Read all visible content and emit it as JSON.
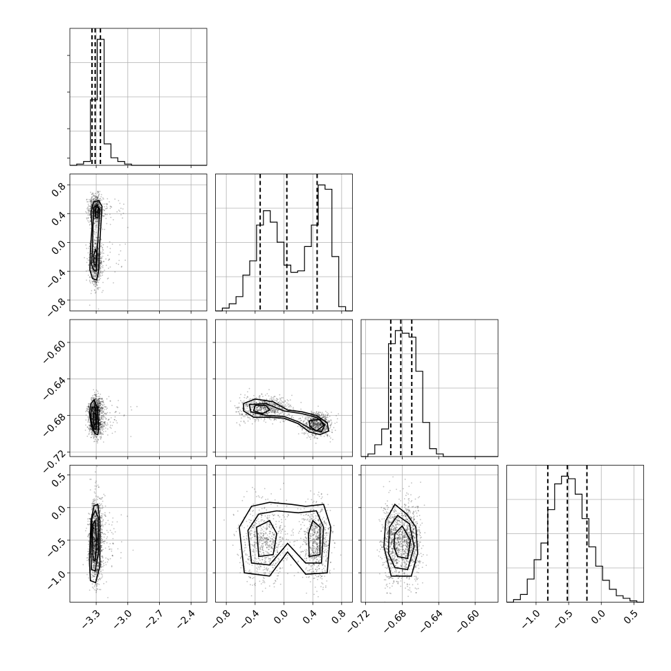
{
  "chart_data": {
    "type": "corner",
    "parameters": [
      {
        "range": [
          -3.55,
          -2.25
        ],
        "ticks": [
          -3.3,
          -3.0,
          -2.7,
          -2.4
        ],
        "tick_labels": [
          "−3.3",
          "−3.0",
          "−2.7",
          "−2.4"
        ],
        "quantiles": [
          -3.34,
          -3.31,
          -3.26
        ],
        "histogram": {
          "edges": [
            -3.55,
            -3.485,
            -3.42,
            -3.355,
            -3.29,
            -3.225,
            -3.16,
            -3.095,
            -3.03,
            -2.965,
            -2.9,
            -2.835,
            -2.77,
            -2.705,
            -2.64,
            -2.575,
            -2.51,
            -2.445,
            -2.38,
            -2.315,
            -2.25
          ],
          "counts": [
            0,
            0.01,
            0.03,
            0.52,
            1.0,
            0.17,
            0.06,
            0.03,
            0.01,
            0,
            0,
            0,
            0,
            0,
            0,
            0,
            0,
            0,
            0,
            0
          ]
        }
      },
      {
        "range": [
          -0.95,
          0.95
        ],
        "ticks": [
          -0.8,
          -0.4,
          0.0,
          0.4,
          0.8
        ],
        "tick_labels": [
          "−0.8",
          "−0.4",
          "0.0",
          "0.4",
          "0.8"
        ],
        "quantiles": [
          -0.33,
          0.04,
          0.46
        ],
        "histogram": {
          "edges": [
            -0.95,
            -0.855,
            -0.76,
            -0.665,
            -0.57,
            -0.475,
            -0.38,
            -0.285,
            -0.19,
            -0.095,
            0.0,
            0.095,
            0.19,
            0.285,
            0.38,
            0.475,
            0.57,
            0.665,
            0.76,
            0.855,
            0.95
          ],
          "counts": [
            0.0,
            0.02,
            0.05,
            0.1,
            0.25,
            0.35,
            0.6,
            0.7,
            0.62,
            0.48,
            0.32,
            0.27,
            0.28,
            0.45,
            0.6,
            0.88,
            0.85,
            0.38,
            0.03,
            0.0
          ]
        }
      },
      {
        "range": [
          -0.725,
          -0.575
        ],
        "ticks": [
          -0.72,
          -0.68,
          -0.64,
          -0.6
        ],
        "tick_labels": [
          "−0.72",
          "−0.68",
          "−0.64",
          "−0.60"
        ],
        "quantiles": [
          -0.6925,
          -0.6815,
          -0.6695
        ],
        "histogram": {
          "edges": [
            -0.725,
            -0.7175,
            -0.71,
            -0.7025,
            -0.695,
            -0.6875,
            -0.68,
            -0.6725,
            -0.665,
            -0.6575,
            -0.65,
            -0.6425,
            -0.635,
            -0.6275,
            -0.62,
            -0.6125,
            -0.605,
            -0.5975,
            -0.59,
            -0.5825,
            -0.575
          ],
          "counts": [
            0,
            0.02,
            0.09,
            0.21,
            0.86,
            0.96,
            0.94,
            0.91,
            0.65,
            0.26,
            0.06,
            0.02,
            0,
            0,
            0,
            0,
            0,
            0,
            0,
            0
          ]
        }
      },
      {
        "range": [
          -1.45,
          0.65
        ],
        "ticks": [
          -1.0,
          -0.5,
          0.0,
          0.5
        ],
        "tick_labels": [
          "−1.0",
          "−0.5",
          "0.0",
          "0.5"
        ],
        "quantiles": [
          -0.82,
          -0.52,
          -0.22
        ],
        "histogram": {
          "edges": [
            -1.45,
            -1.345,
            -1.24,
            -1.135,
            -1.03,
            -0.925,
            -0.82,
            -0.715,
            -0.61,
            -0.505,
            -0.4,
            -0.295,
            -0.19,
            -0.085,
            0.02,
            0.125,
            0.23,
            0.335,
            0.44,
            0.545,
            0.65
          ],
          "counts": [
            0,
            0.02,
            0.06,
            0.18,
            0.33,
            0.46,
            0.72,
            0.92,
            0.98,
            0.96,
            0.84,
            0.65,
            0.43,
            0.28,
            0.17,
            0.1,
            0.05,
            0.03,
            0.01,
            0
          ]
        }
      }
    ],
    "pairs": [
      {
        "row": 1,
        "col": 0,
        "levels": [
          [
            [
              -3.335,
              -0.5
            ],
            [
              -3.295,
              -0.52
            ],
            [
              -3.275,
              -0.38
            ],
            [
              -3.27,
              -0.1
            ],
            [
              -3.255,
              0.25
            ],
            [
              -3.245,
              0.5
            ],
            [
              -3.275,
              0.58
            ],
            [
              -3.325,
              0.56
            ],
            [
              -3.35,
              0.42
            ],
            [
              -3.34,
              0.22
            ],
            [
              -3.355,
              -0.1
            ],
            [
              -3.36,
              -0.38
            ]
          ],
          [
            [
              -3.325,
              -0.38
            ],
            [
              -3.3,
              -0.4
            ],
            [
              -3.29,
              -0.1
            ],
            [
              -3.275,
              0.25
            ],
            [
              -3.265,
              0.45
            ],
            [
              -3.29,
              0.52
            ],
            [
              -3.325,
              0.48
            ],
            [
              -3.33,
              0.25
            ],
            [
              -3.335,
              -0.1
            ],
            [
              -3.345,
              -0.3
            ]
          ],
          [
            [
              -3.32,
              -0.3
            ],
            [
              -3.305,
              -0.32
            ],
            [
              -3.295,
              -0.15
            ],
            [
              -3.305,
              -0.1
            ],
            [
              -3.325,
              -0.18
            ]
          ],
          [
            [
              -3.305,
              0.35
            ],
            [
              -3.285,
              0.34
            ],
            [
              -3.28,
              0.48
            ],
            [
              -3.3,
              0.5
            ],
            [
              -3.31,
              0.44
            ]
          ]
        ]
      },
      {
        "row": 2,
        "col": 0,
        "levels": [
          [
            [
              -3.35,
              -0.667
            ],
            [
              -3.32,
              -0.663
            ],
            [
              -3.29,
              -0.672
            ],
            [
              -3.275,
              -0.693
            ],
            [
              -3.285,
              -0.701
            ],
            [
              -3.31,
              -0.7
            ],
            [
              -3.345,
              -0.692
            ],
            [
              -3.365,
              -0.677
            ]
          ],
          [
            [
              -3.34,
              -0.671
            ],
            [
              -3.31,
              -0.671
            ],
            [
              -3.295,
              -0.683
            ],
            [
              -3.3,
              -0.695
            ],
            [
              -3.32,
              -0.695
            ],
            [
              -3.345,
              -0.688
            ],
            [
              -3.352,
              -0.678
            ]
          ],
          [
            [
              -3.325,
              -0.677
            ],
            [
              -3.305,
              -0.678
            ],
            [
              -3.302,
              -0.688
            ],
            [
              -3.318,
              -0.691
            ],
            [
              -3.33,
              -0.685
            ]
          ]
        ]
      },
      {
        "row": 2,
        "col": 1,
        "levels": [
          [
            [
              -0.56,
              -0.667
            ],
            [
              -0.4,
              -0.662
            ],
            [
              -0.15,
              -0.665
            ],
            [
              0.05,
              -0.674
            ],
            [
              0.25,
              -0.676
            ],
            [
              0.45,
              -0.68
            ],
            [
              0.6,
              -0.688
            ],
            [
              0.62,
              -0.697
            ],
            [
              0.5,
              -0.701
            ],
            [
              0.35,
              -0.698
            ],
            [
              0.2,
              -0.689
            ],
            [
              0.0,
              -0.683
            ],
            [
              -0.2,
              -0.682
            ],
            [
              -0.42,
              -0.682
            ],
            [
              -0.56,
              -0.675
            ]
          ],
          [
            [
              -0.48,
              -0.668
            ],
            [
              -0.25,
              -0.667
            ],
            [
              0.0,
              -0.675
            ],
            [
              0.25,
              -0.678
            ],
            [
              0.45,
              -0.682
            ],
            [
              0.57,
              -0.69
            ],
            [
              0.52,
              -0.698
            ],
            [
              0.38,
              -0.695
            ],
            [
              0.2,
              -0.687
            ],
            [
              0.0,
              -0.681
            ],
            [
              -0.25,
              -0.68
            ],
            [
              -0.46,
              -0.676
            ]
          ],
          [
            [
              -0.4,
              -0.669
            ],
            [
              -0.25,
              -0.669
            ],
            [
              -0.2,
              -0.674
            ],
            [
              -0.3,
              -0.678
            ],
            [
              -0.42,
              -0.675
            ]
          ],
          [
            [
              0.35,
              -0.686
            ],
            [
              0.5,
              -0.684
            ],
            [
              0.55,
              -0.691
            ],
            [
              0.45,
              -0.697
            ],
            [
              0.36,
              -0.692
            ]
          ]
        ]
      },
      {
        "row": 3,
        "col": 0,
        "levels": [
          [
            [
              -3.355,
              -1.12
            ],
            [
              -3.305,
              -1.15
            ],
            [
              -3.265,
              -0.9
            ],
            [
              -3.265,
              -0.2
            ],
            [
              -3.285,
              0.05
            ],
            [
              -3.32,
              0.03
            ],
            [
              -3.35,
              -0.2
            ],
            [
              -3.365,
              -0.8
            ]
          ],
          [
            [
              -3.345,
              -0.95
            ],
            [
              -3.31,
              -0.97
            ],
            [
              -3.28,
              -0.7
            ],
            [
              -3.28,
              -0.15
            ],
            [
              -3.31,
              -0.05
            ],
            [
              -3.34,
              -0.15
            ],
            [
              -3.35,
              -0.7
            ]
          ],
          [
            [
              -3.33,
              -0.8
            ],
            [
              -3.31,
              -0.82
            ],
            [
              -3.295,
              -0.5
            ],
            [
              -3.31,
              -0.2
            ],
            [
              -3.33,
              -0.25
            ],
            [
              -3.335,
              -0.5
            ]
          ]
        ]
      },
      {
        "row": 3,
        "col": 1,
        "levels": [
          [
            [
              -0.55,
              -1.0
            ],
            [
              -0.2,
              -1.05
            ],
            [
              0.05,
              -0.68
            ],
            [
              0.3,
              -1.02
            ],
            [
              0.6,
              -1.0
            ],
            [
              0.65,
              -0.3
            ],
            [
              0.55,
              0.05
            ],
            [
              0.3,
              0.02
            ],
            [
              0.1,
              0.05
            ],
            [
              -0.2,
              0.08
            ],
            [
              -0.45,
              0.02
            ],
            [
              -0.62,
              -0.3
            ]
          ],
          [
            [
              -0.45,
              -0.85
            ],
            [
              -0.2,
              -0.88
            ],
            [
              0.05,
              -0.55
            ],
            [
              0.3,
              -0.85
            ],
            [
              0.52,
              -0.85
            ],
            [
              0.55,
              -0.3
            ],
            [
              0.45,
              -0.05
            ],
            [
              0.2,
              -0.08
            ],
            [
              -0.1,
              -0.05
            ],
            [
              -0.35,
              -0.1
            ],
            [
              -0.5,
              -0.35
            ]
          ],
          [
            [
              -0.35,
              -0.75
            ],
            [
              -0.15,
              -0.72
            ],
            [
              -0.1,
              -0.4
            ],
            [
              -0.2,
              -0.2
            ],
            [
              -0.38,
              -0.3
            ]
          ],
          [
            [
              0.35,
              -0.75
            ],
            [
              0.5,
              -0.72
            ],
            [
              0.5,
              -0.3
            ],
            [
              0.4,
              -0.2
            ],
            [
              0.34,
              -0.4
            ]
          ]
        ]
      },
      {
        "row": 3,
        "col": 2,
        "levels": [
          [
            [
              -0.692,
              -1.05
            ],
            [
              -0.67,
              -1.05
            ],
            [
              -0.663,
              -0.7
            ],
            [
              -0.665,
              -0.3
            ],
            [
              -0.675,
              -0.1
            ],
            [
              -0.688,
              0.05
            ],
            [
              -0.698,
              -0.2
            ],
            [
              -0.7,
              -0.6
            ]
          ],
          [
            [
              -0.688,
              -0.92
            ],
            [
              -0.674,
              -0.95
            ],
            [
              -0.667,
              -0.6
            ],
            [
              -0.672,
              -0.25
            ],
            [
              -0.685,
              -0.12
            ],
            [
              -0.694,
              -0.3
            ],
            [
              -0.695,
              -0.7
            ]
          ],
          [
            [
              -0.685,
              -0.75
            ],
            [
              -0.674,
              -0.78
            ],
            [
              -0.671,
              -0.5
            ],
            [
              -0.68,
              -0.28
            ],
            [
              -0.688,
              -0.4
            ],
            [
              -0.689,
              -0.6
            ]
          ]
        ]
      }
    ]
  }
}
